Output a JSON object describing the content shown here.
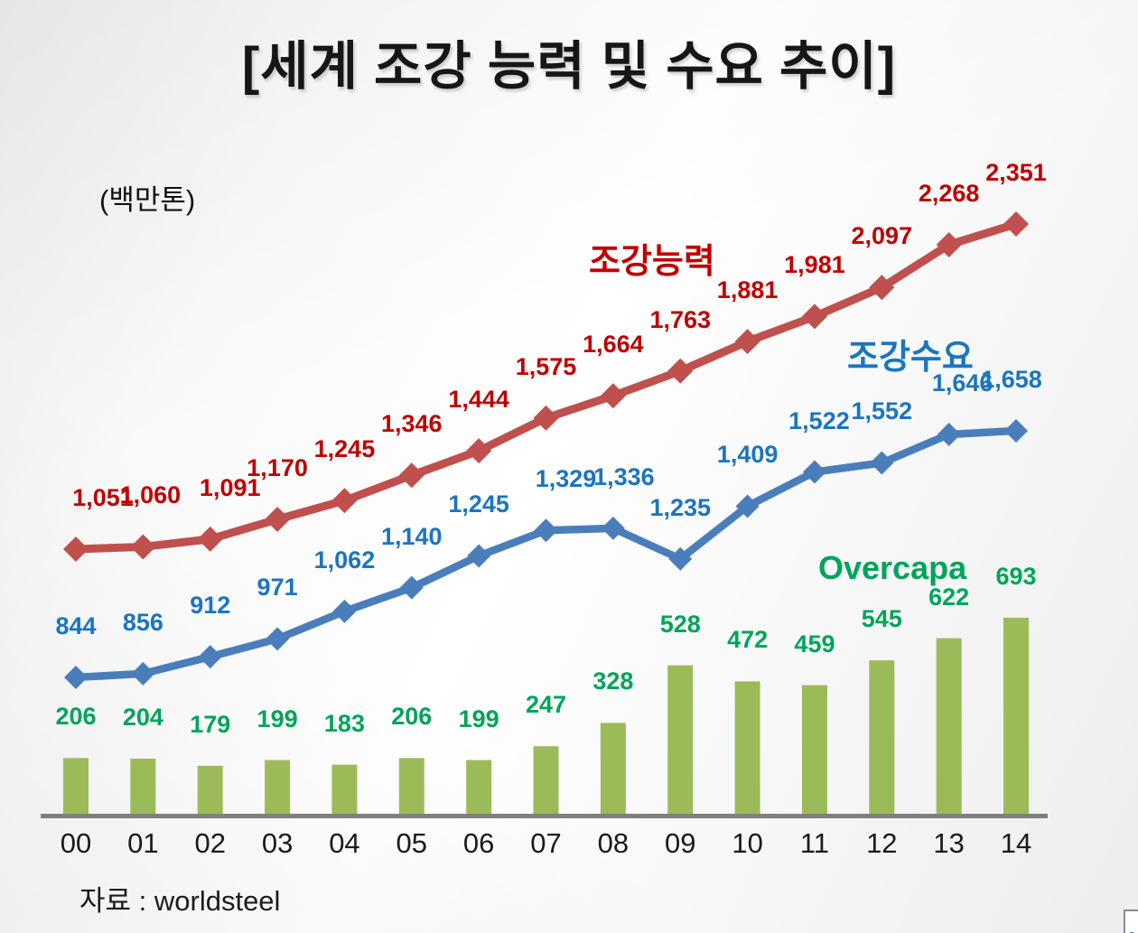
{
  "chart_data": {
    "type": "combo",
    "title": "[세계 조강 능력 및 수요 추이]",
    "unit_label": "(백만톤)",
    "source": "자료 : worldsteel",
    "categories": [
      "00",
      "01",
      "02",
      "03",
      "04",
      "05",
      "06",
      "07",
      "08",
      "09",
      "10",
      "11",
      "12",
      "13",
      "14"
    ],
    "grid": false,
    "legend_position": "inline-annotations",
    "axis_color": "#7F7F7F",
    "series": [
      {
        "name": "조강능력",
        "type": "line",
        "color": "#C0504D",
        "label_color": "#C00000",
        "values": [
          1051,
          1060,
          1091,
          1170,
          1245,
          1346,
          1444,
          1575,
          1664,
          1763,
          1881,
          1981,
          2097,
          2268,
          2351
        ]
      },
      {
        "name": "조강수요",
        "type": "line",
        "color": "#4A7EBB",
        "label_color": "#1B75C0",
        "values": [
          844,
          856,
          912,
          971,
          1062,
          1140,
          1245,
          1329,
          1336,
          1235,
          1409,
          1522,
          1552,
          1646,
          1658
        ]
      },
      {
        "name": "Overcapa",
        "type": "bar",
        "color": "#9BBB59",
        "label_color": "#00A45A",
        "values": [
          206,
          204,
          179,
          199,
          183,
          206,
          199,
          247,
          328,
          528,
          472,
          459,
          545,
          622,
          693
        ]
      }
    ]
  }
}
